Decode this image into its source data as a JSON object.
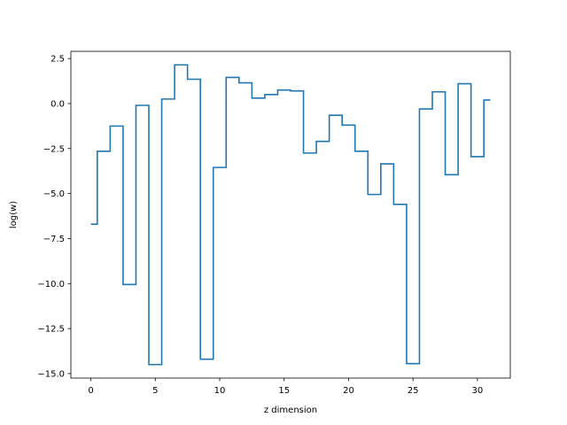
{
  "chart_data": {
    "type": "line",
    "step": "mid",
    "title": "",
    "xlabel": "z dimension",
    "ylabel": "log(w)",
    "xlim": [
      -1.55,
      32.55
    ],
    "ylim": [
      -15.25,
      2.9
    ],
    "xticks": [
      0,
      5,
      10,
      15,
      20,
      25,
      30
    ],
    "yticks": [
      -15.0,
      -12.5,
      -10.0,
      -7.5,
      -5.0,
      -2.5,
      0.0,
      2.5
    ],
    "xtick_labels": [
      "0",
      "5",
      "10",
      "15",
      "20",
      "25",
      "30"
    ],
    "ytick_labels": [
      "−15.0",
      "−12.5",
      "−10.0",
      "−7.5",
      "−5.0",
      "−2.5",
      "0.0",
      "2.5"
    ],
    "grid": false,
    "series": [
      {
        "color": "#1f77b4",
        "x": [
          0,
          1,
          2,
          3,
          4,
          5,
          6,
          7,
          8,
          9,
          10,
          11,
          12,
          13,
          14,
          15,
          16,
          17,
          18,
          19,
          20,
          21,
          22,
          23,
          24,
          25,
          26,
          27,
          28,
          29,
          30,
          31
        ],
        "y": [
          -6.7,
          -2.65,
          -1.25,
          -10.05,
          -0.1,
          -14.5,
          0.25,
          2.15,
          1.35,
          -14.2,
          -3.55,
          1.45,
          1.15,
          0.3,
          0.5,
          0.75,
          0.7,
          -2.75,
          -2.1,
          -0.65,
          -1.2,
          -2.65,
          -5.05,
          -3.35,
          -5.6,
          -14.45,
          -0.3,
          0.65,
          -3.95,
          1.1,
          -2.95,
          0.2
        ]
      }
    ]
  }
}
